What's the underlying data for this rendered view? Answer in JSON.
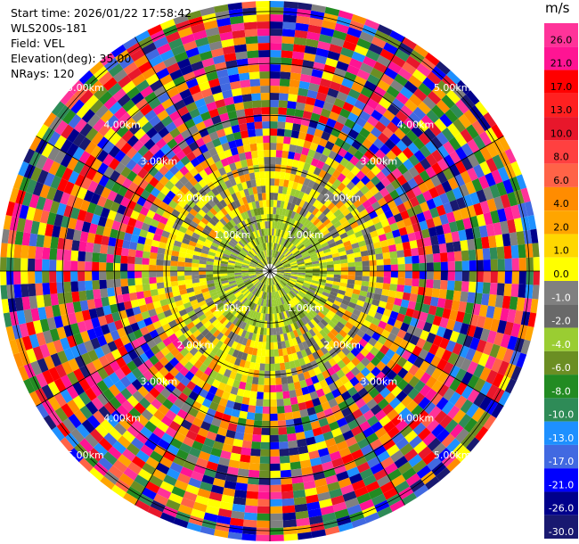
{
  "header": {
    "start_time": "Start time: 2026/01/22 17:58:42",
    "instrument": "WLS200s-181",
    "field": "Field: VEL",
    "elevation": "Elevation(deg): 35.00",
    "nrays": "NRays: 120"
  },
  "ring_labels": [
    "1.00km",
    "2.00km",
    "3.00km",
    "4.00km",
    "5.00km"
  ],
  "colorbar": {
    "unit": "m/s",
    "levels": [
      "26.0",
      "21.0",
      "17.0",
      "13.0",
      "10.0",
      "8.0",
      "6.0",
      "4.0",
      "2.0",
      "1.0",
      "0.0",
      "-1.0",
      "-2.0",
      "-4.0",
      "-6.0",
      "-8.0",
      "-10.0",
      "-13.0",
      "-17.0",
      "-21.0",
      "-26.0",
      "-30.0"
    ],
    "colors": [
      "#ff3399",
      "#ff1493",
      "#ff0000",
      "#ff2020",
      "#e8172b",
      "#ff4040",
      "#ff6347",
      "#ff8c00",
      "#ffa500",
      "#ffd700",
      "#ffff00",
      "#808080",
      "#696969",
      "#9acd32",
      "#6b8e23",
      "#228b22",
      "#2e8b57",
      "#1e90ff",
      "#4169e1",
      "#0000ff",
      "#00008b",
      "#191970"
    ]
  }
}
